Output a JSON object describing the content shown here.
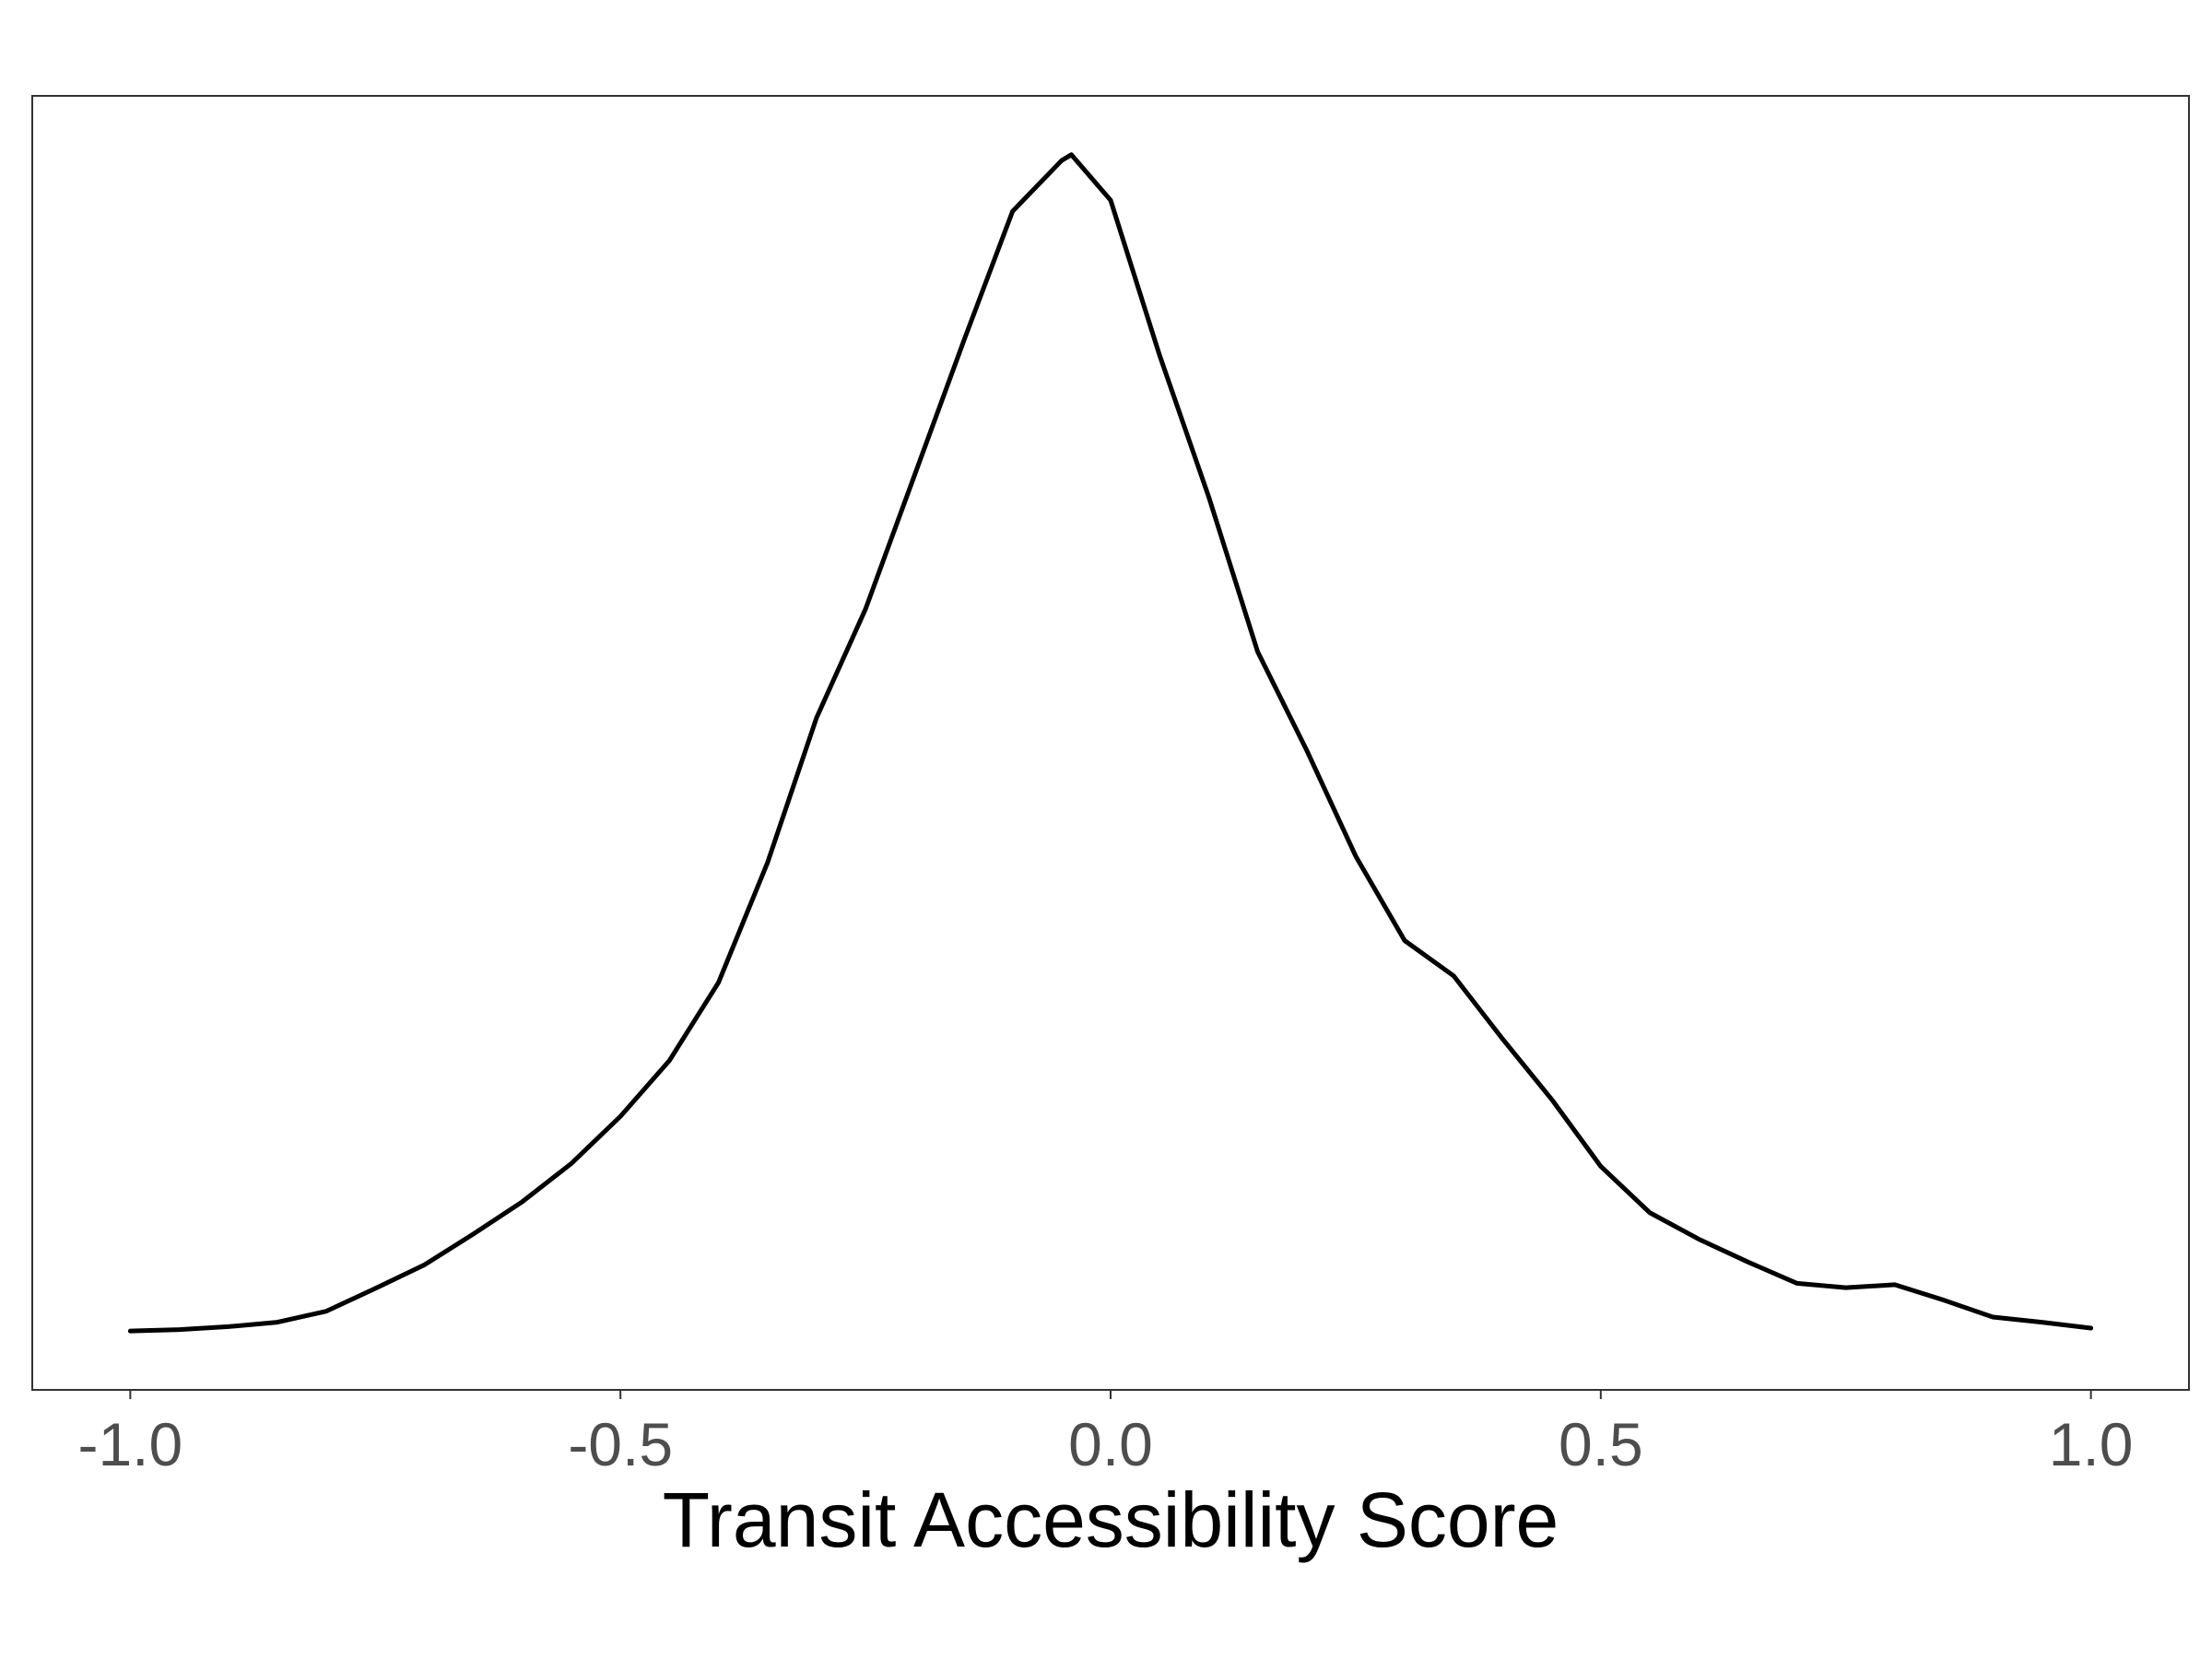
{
  "chart_data": {
    "type": "line",
    "x_label": "Transit Accessibility Score",
    "x": [
      -1.0,
      -0.95,
      -0.9,
      -0.85,
      -0.8,
      -0.75,
      -0.7,
      -0.65,
      -0.6,
      -0.55,
      -0.5,
      -0.45,
      -0.4,
      -0.35,
      -0.3,
      -0.25,
      -0.2,
      -0.15,
      -0.1,
      -0.05,
      -0.04,
      0.0,
      0.05,
      0.1,
      0.15,
      0.2,
      0.25,
      0.3,
      0.35,
      0.4,
      0.45,
      0.5,
      0.55,
      0.6,
      0.65,
      0.7,
      0.75,
      0.8,
      0.85,
      0.9,
      0.95,
      1.0
    ],
    "values": [
      0.02,
      0.022,
      0.026,
      0.032,
      0.047,
      0.078,
      0.11,
      0.152,
      0.196,
      0.248,
      0.312,
      0.388,
      0.494,
      0.657,
      0.854,
      1.002,
      1.184,
      1.366,
      1.543,
      1.612,
      1.62,
      1.558,
      1.347,
      1.155,
      0.944,
      0.81,
      0.666,
      0.551,
      0.503,
      0.417,
      0.335,
      0.244,
      0.181,
      0.145,
      0.114,
      0.085,
      0.079,
      0.083,
      0.062,
      0.039,
      0.032,
      0.024
    ],
    "color": "#000000",
    "xlim": [
      -1.1,
      1.1
    ],
    "xticks": [
      {
        "value": -1.0,
        "label": "-1.0"
      },
      {
        "value": -0.5,
        "label": "-0.5"
      },
      {
        "value": 0,
        "label": "0.0"
      },
      {
        "value": 0.5,
        "label": "0.5"
      },
      {
        "value": 1.0,
        "label": "1.0"
      }
    ],
    "ylim": [
      -0.06,
      1.7
    ],
    "grid": false
  }
}
